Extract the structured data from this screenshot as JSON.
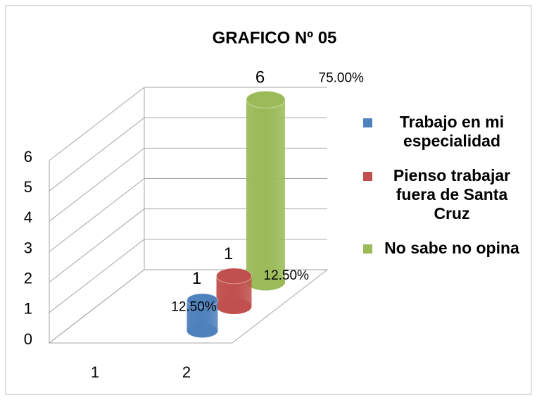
{
  "chart_data": {
    "type": "bar3d",
    "title": "GRAFICO Nº 05",
    "categories": [
      "1",
      "2"
    ],
    "ylim": [
      0,
      6
    ],
    "yticks": [
      0,
      1,
      2,
      3,
      4,
      5,
      6
    ],
    "grid": true,
    "legend": "right",
    "series": [
      {
        "name": "Trabajo en mi especialidad",
        "color": "#4f81bd",
        "values": [
          null,
          1
        ],
        "percents": [
          null,
          12.5
        ],
        "percent_labels": [
          null,
          "12.50%"
        ]
      },
      {
        "name": "Pienso trabajar fuera de Santa Cruz",
        "color": "#c0504d",
        "values": [
          null,
          1
        ],
        "percents": [
          null,
          12.5
        ],
        "percent_labels": [
          null,
          "12.50%"
        ]
      },
      {
        "name": "No sabe no opina",
        "color": "#9bbb59",
        "values": [
          null,
          6
        ],
        "percents": [
          null,
          75
        ],
        "percent_labels": [
          null,
          "75.00%"
        ]
      }
    ]
  }
}
